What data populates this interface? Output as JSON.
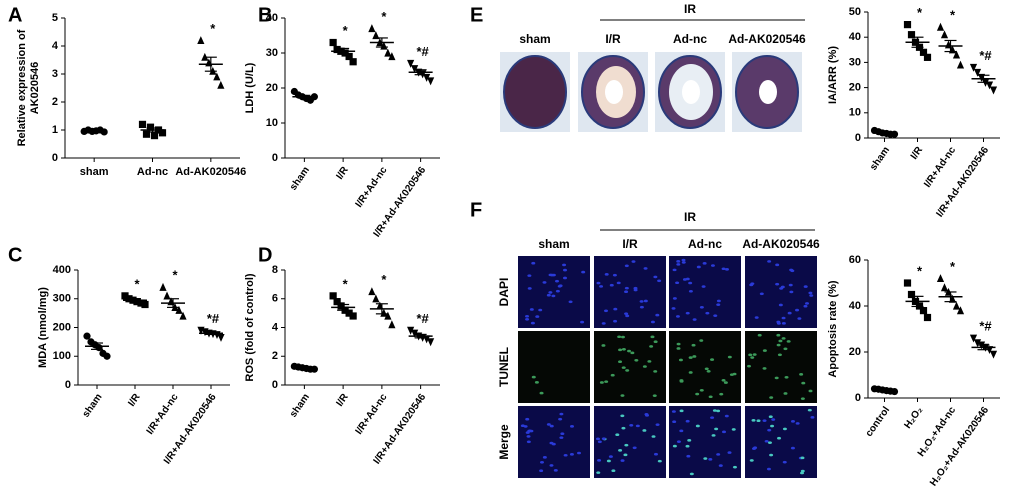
{
  "panel_letters": [
    "A",
    "B",
    "C",
    "D",
    "E",
    "F"
  ],
  "images": {
    "E": {
      "group": "IR",
      "columns": [
        "sham",
        "I/R",
        "Ad-nc",
        "Ad-AK020546"
      ]
    },
    "F": {
      "group": "IR",
      "columns": [
        "sham",
        "I/R",
        "Ad-nc",
        "Ad-AK020546"
      ],
      "rows": [
        "DAPI",
        "TUNEL",
        "Merge"
      ]
    }
  },
  "chart_data": [
    {
      "type": "dotplot",
      "ylabel": [
        "Relative expression of",
        "AK020546"
      ],
      "color": "#000000",
      "categories": [
        "sham",
        "Ad-nc",
        "Ad-AK020546"
      ],
      "markers": [
        "circle",
        "square",
        "triangle"
      ],
      "points": [
        [
          0.95,
          1.0,
          0.95,
          0.97,
          1.0,
          0.93
        ],
        [
          1.2,
          0.85,
          1.1,
          0.8,
          1.0,
          0.9
        ],
        [
          4.2,
          3.6,
          3.4,
          3.1,
          2.9,
          2.6
        ]
      ],
      "mean": [
        0.97,
        1.0,
        3.35
      ],
      "sem": [
        0.02,
        0.07,
        0.25
      ],
      "annotations": [
        null,
        null,
        "*"
      ],
      "ylim": [
        0,
        5
      ],
      "yticks": [
        0,
        1,
        2,
        3,
        4,
        5
      ]
    },
    {
      "type": "dotplot",
      "ylabel": [
        "LDH (U/L)"
      ],
      "color": "#000000",
      "categories": [
        "sham",
        "I/R",
        "I/R+Ad-nc",
        "I/R+Ad-AK020546"
      ],
      "markers": [
        "circle",
        "square",
        "triangle",
        "triangle-down"
      ],
      "points": [
        [
          19,
          18,
          17.5,
          17,
          16.5,
          17.5
        ],
        [
          33,
          31,
          30.5,
          30,
          29,
          27.5
        ],
        [
          37,
          35,
          33,
          32,
          30,
          29
        ],
        [
          27,
          25.5,
          24.5,
          24,
          23,
          22
        ]
      ],
      "mean": [
        17.5,
        30.5,
        33,
        24.5
      ],
      "sem": [
        0.4,
        0.8,
        1.3,
        0.7
      ],
      "annotations": [
        null,
        "*",
        "*",
        "*#"
      ],
      "ylim": [
        0,
        40
      ],
      "yticks": [
        0,
        10,
        20,
        30,
        40
      ]
    },
    {
      "type": "dotplot",
      "ylabel": [
        "MDA (nmol/mg)"
      ],
      "color": "#000000",
      "categories": [
        "sham",
        "I/R",
        "I/R+Ad-nc",
        "I/R+Ad-AK020546"
      ],
      "markers": [
        "circle",
        "square",
        "triangle",
        "triangle-down"
      ],
      "points": [
        [
          170,
          150,
          140,
          130,
          110,
          100
        ],
        [
          310,
          300,
          295,
          290,
          285,
          280
        ],
        [
          340,
          310,
          290,
          270,
          260,
          240
        ],
        [
          190,
          185,
          180,
          178,
          175,
          165
        ]
      ],
      "mean": [
        135,
        295,
        285,
        180
      ],
      "sem": [
        11,
        5,
        15,
        4
      ],
      "annotations": [
        null,
        "*",
        "*",
        "*#"
      ],
      "ylim": [
        0,
        400
      ],
      "yticks": [
        0,
        100,
        200,
        300,
        400
      ]
    },
    {
      "type": "dotplot",
      "ylabel": [
        "ROS (fold of control)"
      ],
      "color": "#000000",
      "categories": [
        "sham",
        "I/R",
        "I/R+Ad-nc",
        "I/R+Ad-AK020546"
      ],
      "markers": [
        "circle",
        "square",
        "triangle",
        "triangle-down"
      ],
      "points": [
        [
          1.3,
          1.25,
          1.2,
          1.15,
          1.1,
          1.1
        ],
        [
          6.2,
          5.8,
          5.5,
          5.2,
          5.0,
          4.8
        ],
        [
          6.5,
          6.0,
          5.5,
          5.0,
          4.8,
          4.2
        ],
        [
          3.8,
          3.6,
          3.4,
          3.3,
          3.2,
          3.0
        ]
      ],
      "mean": [
        1.2,
        5.4,
        5.3,
        3.4
      ],
      "sem": [
        0.04,
        0.2,
        0.35,
        0.12
      ],
      "annotations": [
        null,
        "*",
        "*",
        "*#"
      ],
      "ylim": [
        0,
        8
      ],
      "yticks": [
        0,
        2,
        4,
        6,
        8
      ]
    },
    {
      "type": "dotplot",
      "ylabel": [
        "IA/ARR (%)"
      ],
      "color": "#000000",
      "categories": [
        "sham",
        "I/R",
        "I/R+Ad-nc",
        "I/R+Ad-AK020546"
      ],
      "markers": [
        "circle",
        "square",
        "triangle",
        "triangle-down"
      ],
      "points": [
        [
          3,
          2.5,
          2,
          1.8,
          1.5,
          1.5
        ],
        [
          45,
          41,
          38,
          36,
          34,
          32
        ],
        [
          44,
          41,
          37,
          35,
          33,
          29
        ],
        [
          28,
          26,
          24,
          22,
          21,
          19
        ]
      ],
      "mean": [
        2,
        38,
        36.5,
        23.5
      ],
      "sem": [
        0.25,
        2,
        2.2,
        1.4
      ],
      "annotations": [
        null,
        "*",
        "*",
        "*#"
      ],
      "ylim": [
        0,
        50
      ],
      "yticks": [
        0,
        10,
        20,
        30,
        40,
        50
      ]
    },
    {
      "type": "dotplot",
      "ylabel": [
        "Apoptosis rate (%)"
      ],
      "color": "#000000",
      "categories": [
        "control",
        "H₂O₂",
        "H₂O₂+Ad-nc",
        "H₂O₂+Ad-AK020546"
      ],
      "markers": [
        "circle",
        "square",
        "triangle",
        "triangle-down"
      ],
      "points": [
        [
          4,
          3.8,
          3.5,
          3.2,
          3,
          2.8
        ],
        [
          50,
          45,
          42,
          40,
          38,
          35
        ],
        [
          52,
          48,
          46,
          43,
          40,
          38
        ],
        [
          26,
          24,
          23,
          22,
          21,
          19
        ]
      ],
      "mean": [
        3.5,
        42,
        44,
        22
      ],
      "sem": [
        0.2,
        2.2,
        2.1,
        1.0
      ],
      "annotations": [
        null,
        "*",
        "*",
        "*#"
      ],
      "ylim": [
        0,
        60
      ],
      "yticks": [
        0,
        20,
        40,
        60
      ]
    }
  ]
}
